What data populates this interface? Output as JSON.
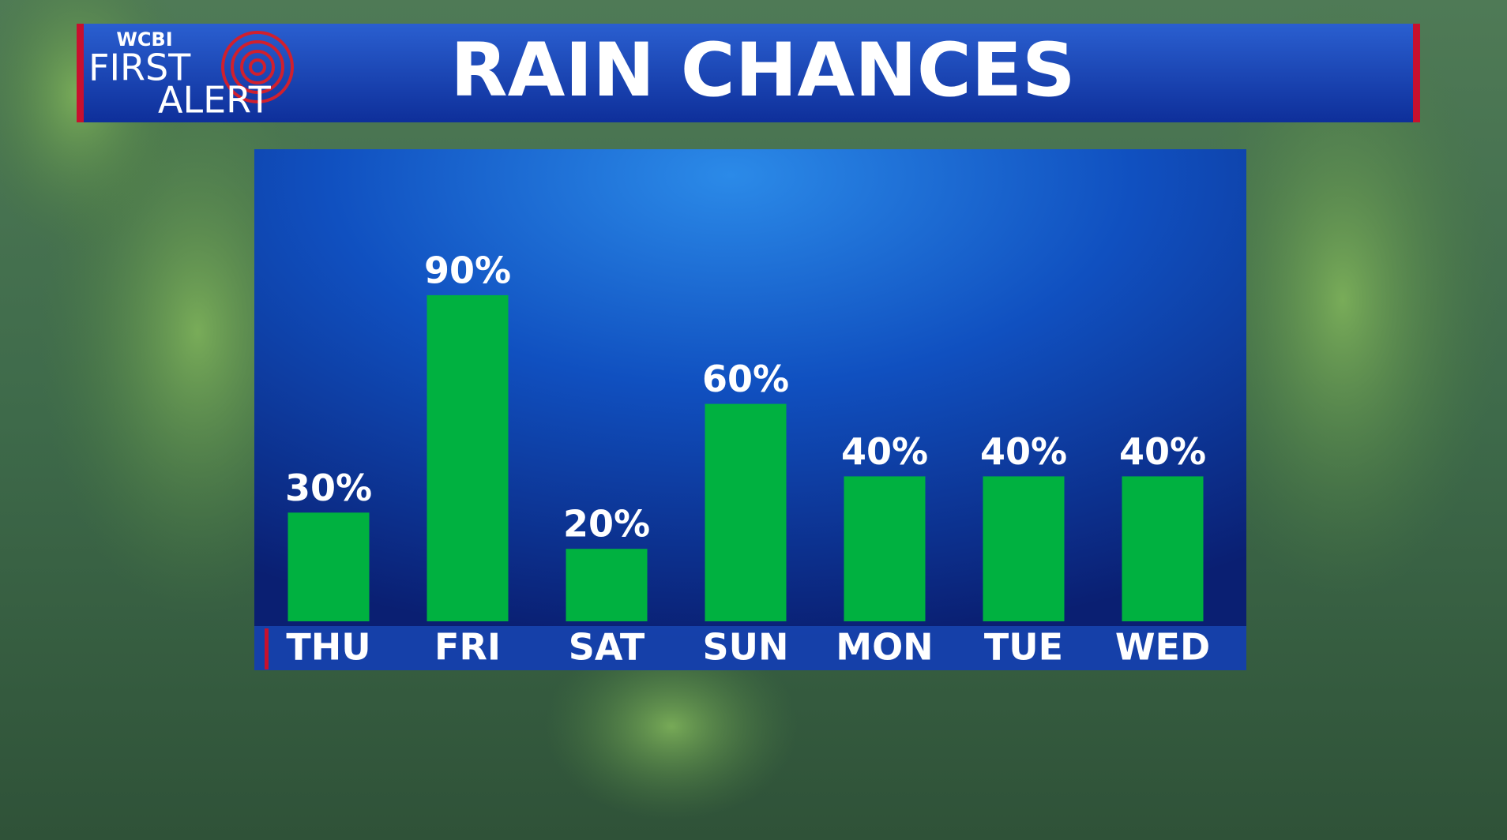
{
  "chart_data": {
    "type": "bar",
    "title": "RAIN CHANCES",
    "logo": {
      "station": "WCBI",
      "line1": "FIRST",
      "line2": "ALERT"
    },
    "categories": [
      "THU",
      "FRI",
      "SAT",
      "SUN",
      "MON",
      "TUE",
      "WED"
    ],
    "values": [
      30,
      90,
      20,
      60,
      40,
      40,
      40
    ],
    "value_labels": [
      "30%",
      "90%",
      "20%",
      "60%",
      "40%",
      "40%",
      "40%"
    ],
    "color": "#00b140",
    "ylim": [
      0,
      100
    ]
  }
}
